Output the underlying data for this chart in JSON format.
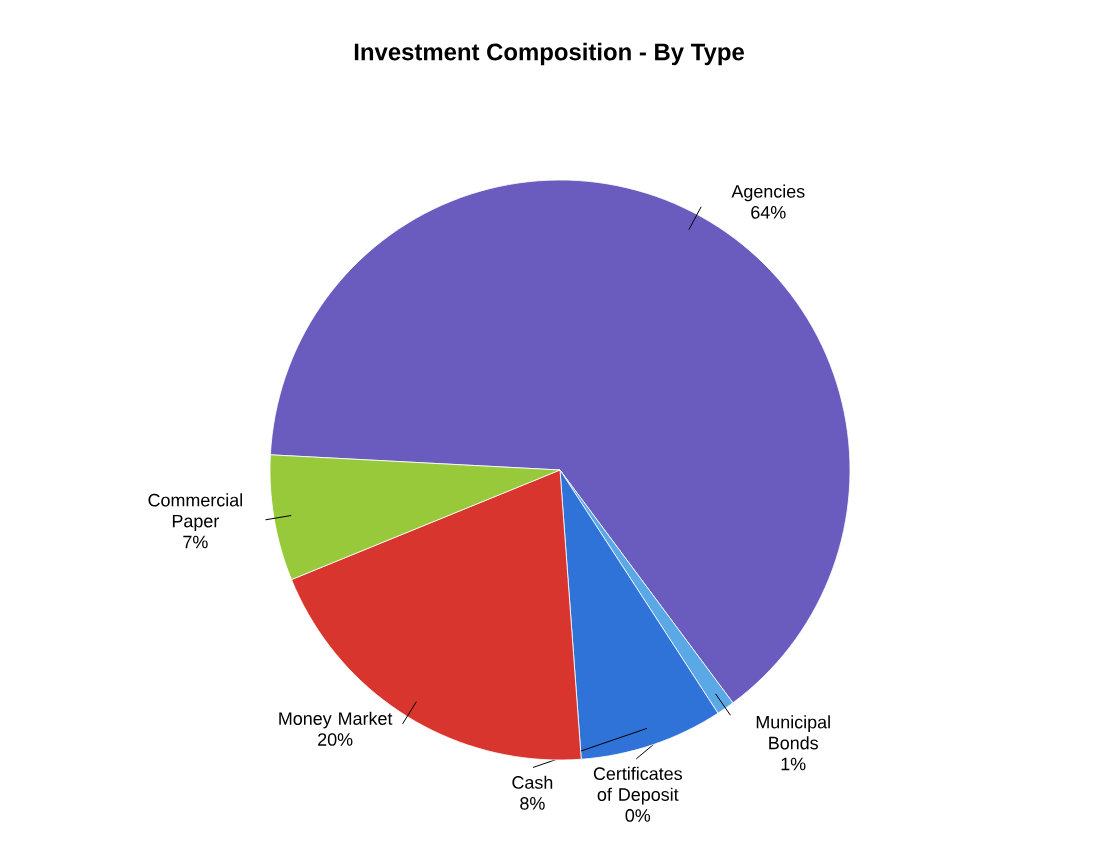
{
  "chart_data": {
    "type": "pie",
    "title": "Investment Composition - By Type",
    "categories": [
      "Agencies",
      "Municipal Bonds",
      "Certificates of Deposit",
      "Cash",
      "Money Market",
      "Commercial Paper"
    ],
    "values": [
      64,
      1,
      0,
      8,
      20,
      7
    ],
    "value_labels": [
      "64%",
      "1%",
      "0%",
      "8%",
      "20%",
      "7%"
    ],
    "colors": [
      "#6a5bbf",
      "#5aa9e6",
      "#8fc0e8",
      "#2f72d8",
      "#d8352e",
      "#97c93a"
    ]
  }
}
